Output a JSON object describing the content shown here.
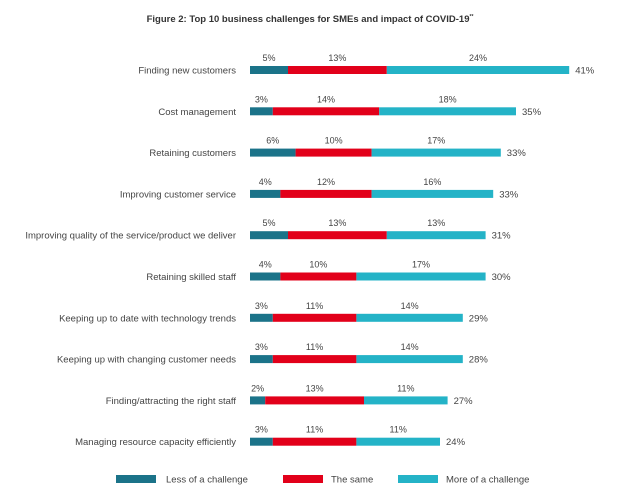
{
  "chart_data": {
    "type": "bar",
    "stacked": true,
    "orientation": "horizontal",
    "title": "Figure 2: Top 10 business challenges for SMEs and impact of COVID-19",
    "title_superscript": "**",
    "unit": "%",
    "categories": [
      "Finding new customers",
      "Cost management",
      "Retaining customers",
      "Improving customer service",
      "Improving quality of the service/product we deliver",
      "Retaining skilled staff",
      "Keeping up to date with technology trends",
      "Keeping up with changing customer needs",
      "Finding/attracting the right staff",
      "Managing resource capacity efficiently"
    ],
    "series": [
      {
        "name": "Less of a challenge",
        "color": "#1b7389",
        "values": [
          5,
          3,
          6,
          4,
          5,
          4,
          3,
          3,
          2,
          3
        ]
      },
      {
        "name": "The same",
        "color": "#e2001a",
        "values": [
          13,
          14,
          10,
          12,
          13,
          10,
          11,
          11,
          13,
          11
        ]
      },
      {
        "name": "More of a challenge",
        "color": "#24b3c7",
        "values": [
          24,
          18,
          17,
          16,
          13,
          17,
          14,
          14,
          11,
          11
        ]
      }
    ],
    "totals": [
      41,
      35,
      33,
      33,
      31,
      30,
      29,
      28,
      27,
      24
    ],
    "grid": false,
    "legend_position": "bottom"
  }
}
